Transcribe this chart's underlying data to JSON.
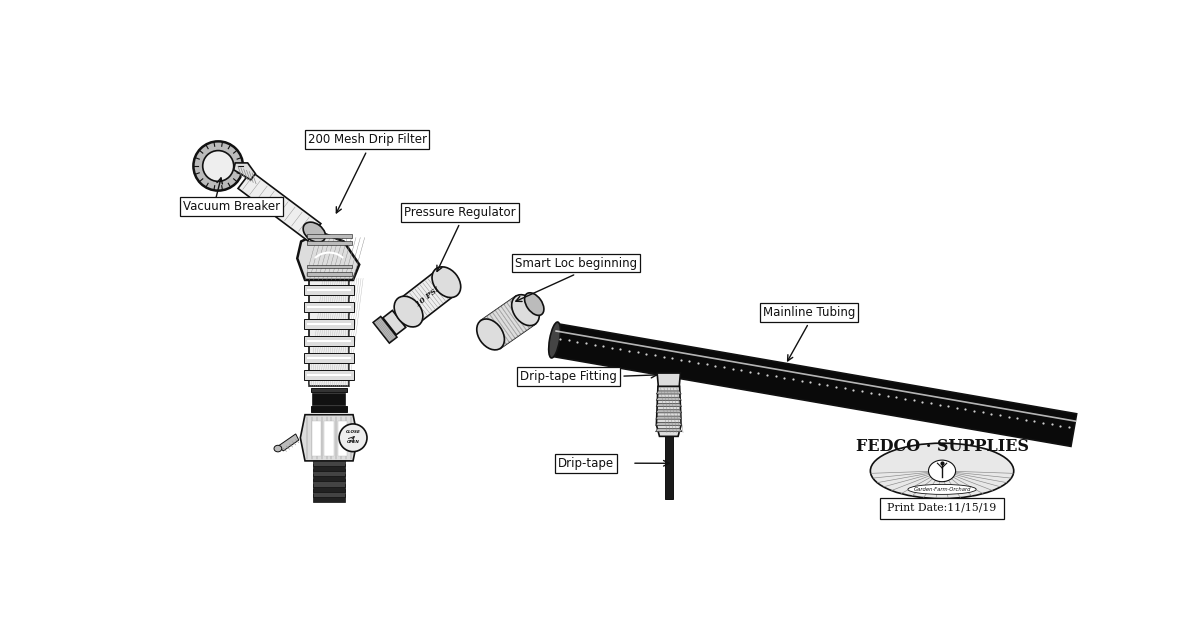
{
  "bg_color": "#ffffff",
  "labels": {
    "vacuum_breaker": "Vacuum Breaker",
    "filter": "200 Mesh Drip Filter",
    "pressure_reg": "Pressure Regulator",
    "smart_loc": "Smart Loc beginning",
    "mainline": "Mainline Tubing",
    "drip_fitting": "Drip-tape Fitting",
    "drip_tape": "Drip-tape"
  },
  "brand": "FEDCO · SUPPLIES",
  "sub_brand": "Garden·Farm·Orchard",
  "print_date": "Print Date:11/15/19",
  "ink_color": "#111111",
  "dark_gray": "#333333",
  "mid_gray": "#888888",
  "light_gray": "#bbbbbb",
  "very_light": "#dddddd",
  "near_white": "#eeeeee"
}
